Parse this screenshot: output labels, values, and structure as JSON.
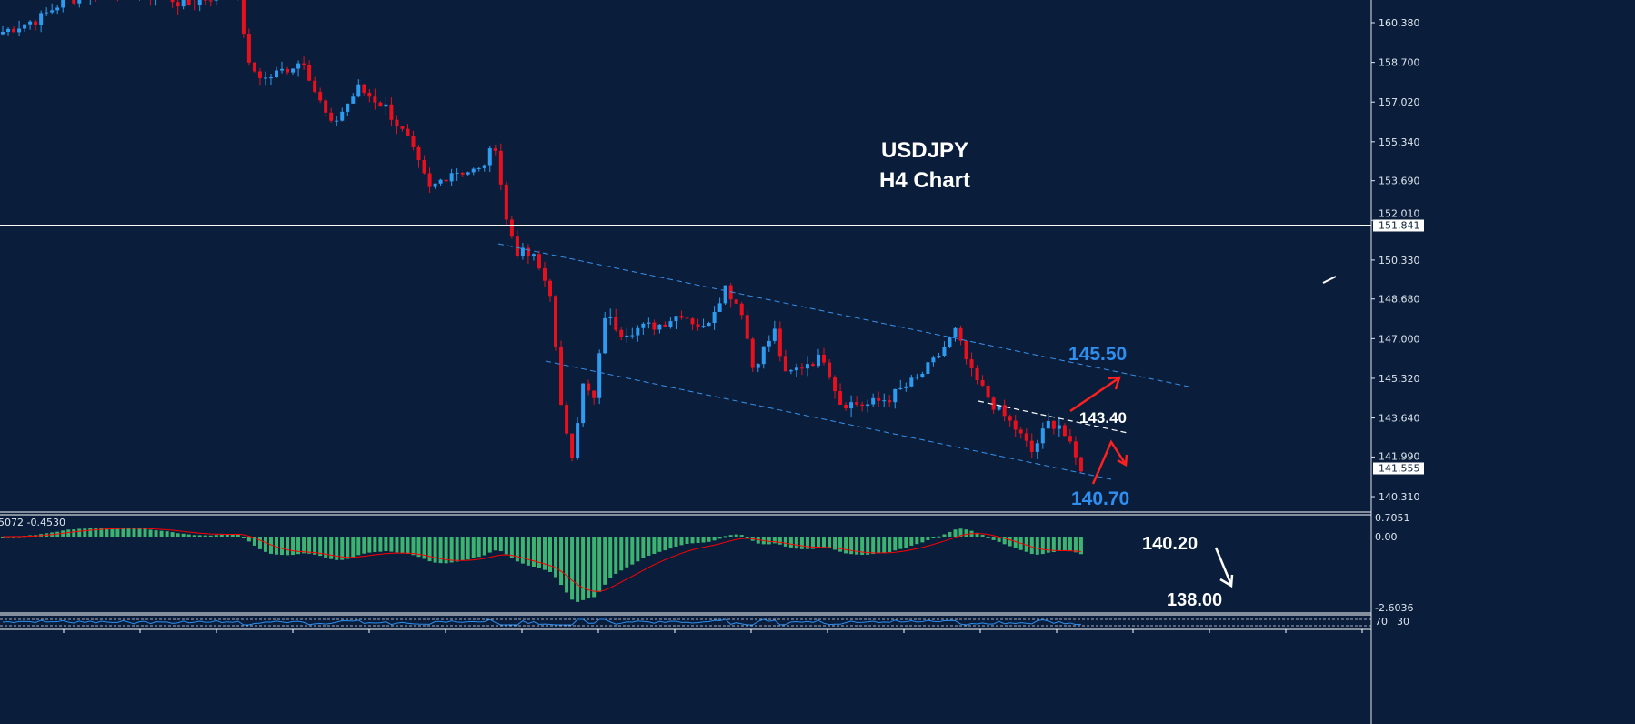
{
  "chart_data": {
    "type": "candlestick",
    "title": "USDJPY",
    "subtitle": "H4 Chart",
    "price_axis": {
      "ticks": [
        "160.380",
        "158.700",
        "157.020",
        "155.340",
        "153.690",
        "152.010",
        "150.330",
        "148.680",
        "147.000",
        "145.320",
        "143.640",
        "141.990",
        "140.310"
      ],
      "range": [
        139.9,
        161.3
      ]
    },
    "horizontal_lines": [
      {
        "price": 151.841,
        "label": "151.841",
        "color": "#ffffff"
      },
      {
        "price": 141.555,
        "label": "141.555",
        "color": "#9aa4b0"
      }
    ],
    "price_path": [
      [
        0,
        160.0
      ],
      [
        7,
        160.6
      ],
      [
        11,
        161.3
      ],
      [
        20,
        161.8
      ],
      [
        30,
        161.5
      ],
      [
        33,
        161.1
      ],
      [
        42,
        161.8
      ],
      [
        43,
        161.6
      ],
      [
        45,
        158.5
      ],
      [
        48,
        158.0
      ],
      [
        55,
        158.8
      ],
      [
        57,
        157.5
      ],
      [
        60,
        156.0
      ],
      [
        65,
        157.6
      ],
      [
        70,
        156.8
      ],
      [
        74,
        155.4
      ],
      [
        78,
        153.3
      ],
      [
        82,
        154.1
      ],
      [
        87,
        154.1
      ],
      [
        90,
        155.2
      ],
      [
        92,
        152.0
      ],
      [
        94,
        150.7
      ],
      [
        97,
        150.4
      ],
      [
        100,
        149.0
      ],
      [
        102,
        144.0
      ],
      [
        104,
        142.2
      ],
      [
        106,
        145.0
      ],
      [
        108,
        144.4
      ],
      [
        110,
        148.0
      ],
      [
        113,
        147.3
      ],
      [
        120,
        147.6
      ],
      [
        124,
        148.1
      ],
      [
        128,
        147.4
      ],
      [
        132,
        149.2
      ],
      [
        135,
        148.2
      ],
      [
        137,
        145.8
      ],
      [
        141,
        147.3
      ],
      [
        143,
        145.4
      ],
      [
        147,
        146.0
      ],
      [
        150,
        146.2
      ],
      [
        153,
        144.3
      ],
      [
        158,
        144.2
      ],
      [
        162,
        144.5
      ],
      [
        167,
        145.3
      ],
      [
        170,
        146.0
      ],
      [
        174,
        147.3
      ],
      [
        177,
        145.5
      ],
      [
        181,
        144.2
      ],
      [
        185,
        143.2
      ],
      [
        188,
        142.2
      ],
      [
        191,
        143.4
      ],
      [
        193,
        143.4
      ],
      [
        196,
        141.9
      ],
      [
        197,
        141.55
      ]
    ],
    "colors": {
      "bull": "#2e9bf0",
      "bear": "#e8101c",
      "background": "#0a1e3b",
      "channel": "#3a8fe8"
    },
    "annotations": [
      {
        "text": "145.50",
        "color": "#2e8ff0"
      },
      {
        "text": "143.40",
        "color": "#ffffff"
      },
      {
        "text": "140.70",
        "color": "#2e8ff0"
      },
      {
        "text": "140.20",
        "color": "#ffffff"
      },
      {
        "text": "138.00",
        "color": "#ffffff"
      }
    ],
    "macd": {
      "label": "5072 -0.4530",
      "ticks": [
        "0.7051",
        "0.00",
        "-2.6036"
      ],
      "range": [
        -2.6036,
        0.7051
      ],
      "hist_color": "#3cb371",
      "signal_color": "#ff0000"
    },
    "rsi": {
      "ticks": [
        "70",
        "30"
      ],
      "line_color": "#2e8ff0"
    }
  }
}
